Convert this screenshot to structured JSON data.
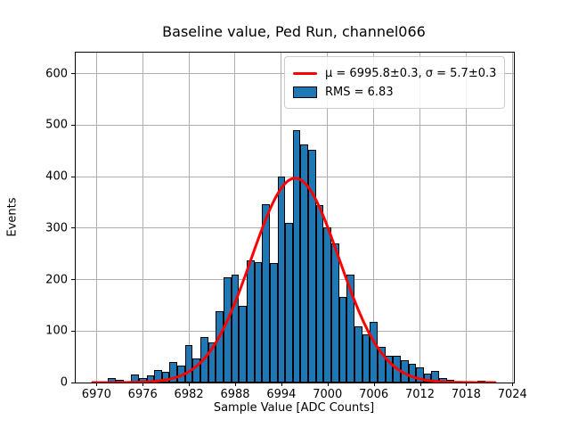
{
  "chart_data": {
    "type": "histogram",
    "title": "Baseline value, Ped Run, channel066",
    "xlabel": "Sample Value [ADC Counts]",
    "ylabel": "Events",
    "x_ticks": [
      6970,
      6976,
      6982,
      6988,
      6994,
      7000,
      7006,
      7012,
      7018,
      7024
    ],
    "y_ticks": [
      0,
      100,
      200,
      300,
      400,
      500,
      600
    ],
    "xlim": [
      6967.3,
      7024.2
    ],
    "ylim": [
      0,
      641
    ],
    "grid": true,
    "bin_width": 1,
    "bin_centers": [
      6971,
      6972,
      6973,
      6974,
      6975,
      6976,
      6977,
      6978,
      6979,
      6980,
      6981,
      6982,
      6983,
      6984,
      6985,
      6986,
      6987,
      6988,
      6989,
      6990,
      6991,
      6992,
      6993,
      6994,
      6995,
      6996,
      6997,
      6998,
      6999,
      7000,
      7001,
      7002,
      7003,
      7004,
      7005,
      7006,
      7007,
      7008,
      7009,
      7010,
      7011,
      7012,
      7013,
      7014,
      7015,
      7016,
      7017,
      7018,
      7019,
      7020,
      7021
    ],
    "counts": [
      1,
      8,
      5,
      2,
      15,
      8,
      13,
      25,
      21,
      40,
      33,
      73,
      47,
      88,
      78,
      138,
      204,
      209,
      149,
      238,
      234,
      347,
      232,
      400,
      310,
      490,
      462,
      452,
      345,
      302,
      271,
      167,
      210,
      110,
      93,
      118,
      70,
      52,
      52,
      43,
      37,
      30,
      18,
      23,
      9,
      6,
      2,
      1,
      0,
      3,
      1
    ],
    "fit_curve": {
      "type": "gaussian",
      "mu": 6995.8,
      "mu_err": 0.3,
      "sigma": 5.7,
      "sigma_err": 0.3,
      "amplitude": 397,
      "x_start": 6969.5,
      "x_end": 7021.8
    },
    "rms": 6.83,
    "legend": [
      {
        "label": "μ = 6995.8±0.3, σ = 5.7±0.3",
        "swatch": "line"
      },
      {
        "label": "RMS = 6.83",
        "swatch": "patch"
      }
    ],
    "colors": {
      "bar_fill": "#1f77b4",
      "bar_edge": "#000000",
      "fit_line": "#ff0000",
      "grid": "#b0b0b0",
      "background": "#ffffff",
      "text": "#000000"
    }
  }
}
